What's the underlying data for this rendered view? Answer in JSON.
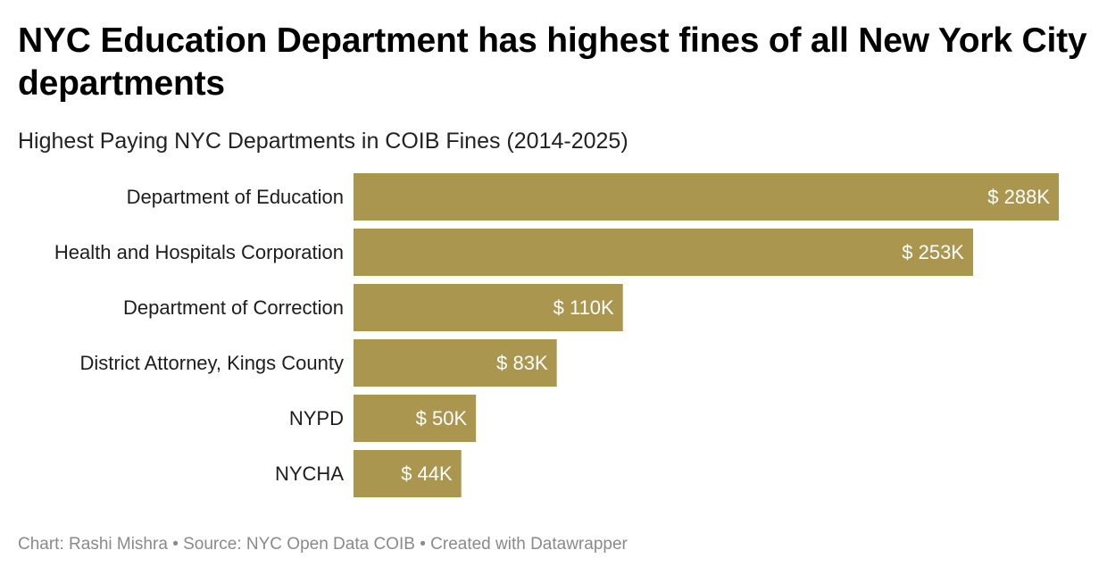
{
  "header": {
    "title": "NYC Education Department has highest fines of all New York City departments",
    "subtitle": "Highest Paying NYC Departments in COIB Fines (2014-2025)"
  },
  "footer": {
    "chart_label": "Chart:",
    "author": "Rashi Mishra",
    "separator": "•",
    "source_label": "Source:",
    "source": "NYC Open Data COIB",
    "created_with": "Created with Datawrapper"
  },
  "colors": {
    "bar": "#ab9650",
    "bar_label": "#ffffff",
    "category_label": "#1d1d1d"
  },
  "chart_data": {
    "type": "bar",
    "orientation": "horizontal",
    "title": "NYC Education Department has highest fines of all New York City departments",
    "subtitle": "Highest Paying NYC Departments in COIB Fines (2014-2025)",
    "xlabel": "",
    "ylabel": "",
    "categories": [
      "Department of Education",
      "Health and Hospitals Corporation",
      "Department of Correction",
      "District Attorney, Kings County",
      "NYPD",
      "NYCHA"
    ],
    "values": [
      288,
      253,
      110,
      83,
      50,
      44
    ],
    "value_labels": [
      "$ 288K",
      "$ 253K",
      "$ 110K",
      "$ 83K",
      "$ 50K",
      "$ 44K"
    ],
    "unit": "thousand USD",
    "xlim": [
      0,
      288
    ],
    "grid": false,
    "legend": "none"
  }
}
